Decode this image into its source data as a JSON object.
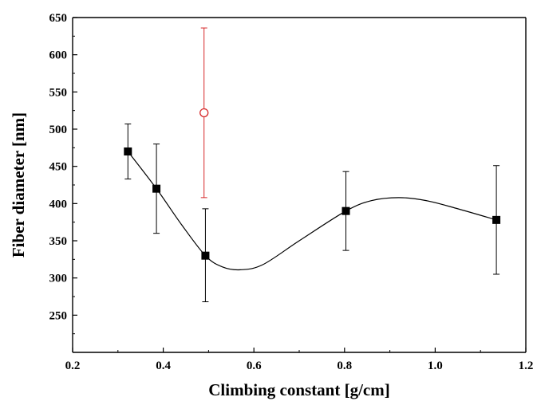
{
  "chart_data": {
    "type": "scatter",
    "xlabel": "Climbing constant [g/cm]",
    "ylabel": "Fiber diameter [nm]",
    "xlim": [
      0.2,
      1.2
    ],
    "ylim": [
      200,
      650
    ],
    "x_ticks": [
      "0.2",
      "0.4",
      "0.6",
      "0.8",
      "1.0",
      "1.2"
    ],
    "y_ticks": [
      "250",
      "300",
      "350",
      "400",
      "450",
      "500",
      "550",
      "600",
      "650"
    ],
    "grid": false,
    "series": [
      {
        "marker": "filled-square",
        "color": "#000000",
        "points": [
          {
            "x": 0.322,
            "y": 470,
            "err_low": 433,
            "err_high": 507
          },
          {
            "x": 0.385,
            "y": 420,
            "err_low": 360,
            "err_high": 480
          },
          {
            "x": 0.493,
            "y": 330,
            "err_low": 268,
            "err_high": 393
          },
          {
            "x": 0.803,
            "y": 390,
            "err_low": 337,
            "err_high": 443
          },
          {
            "x": 1.135,
            "y": 378,
            "err_low": 305,
            "err_high": 451
          }
        ],
        "fit_curve": [
          [
            0.322,
            470
          ],
          [
            0.385,
            420
          ],
          [
            0.44,
            372
          ],
          [
            0.493,
            330
          ],
          [
            0.53,
            315
          ],
          [
            0.57,
            311
          ],
          [
            0.62,
            318
          ],
          [
            0.7,
            350
          ],
          [
            0.803,
            390
          ],
          [
            0.86,
            404
          ],
          [
            0.92,
            408
          ],
          [
            0.98,
            404
          ],
          [
            1.05,
            393
          ],
          [
            1.135,
            378
          ]
        ]
      },
      {
        "marker": "open-circle",
        "color": "#d62728",
        "points": [
          {
            "x": 0.49,
            "y": 522,
            "err_low": 408,
            "err_high": 636
          }
        ]
      }
    ]
  }
}
